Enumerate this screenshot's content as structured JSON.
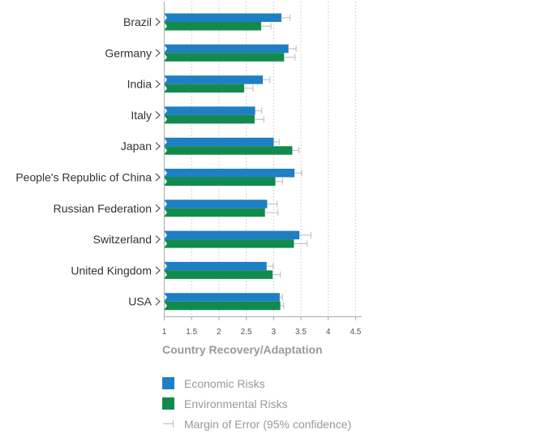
{
  "colors": {
    "economic": "#1f7fc4",
    "environmental": "#128a4d",
    "error": "#c4c4c4",
    "grid": "#d4d4d4"
  },
  "chart_data": {
    "type": "bar",
    "orientation": "horizontal",
    "categories": [
      "Brazil",
      "Germany",
      "India",
      "Italy",
      "Japan",
      "People's Republic of China",
      "Russian Federation",
      "Switzerland",
      "United Kingdom",
      "USA"
    ],
    "series": [
      {
        "name": "Economic Risks",
        "values": [
          3.15,
          3.28,
          2.81,
          2.67,
          3.01,
          3.39,
          2.89,
          3.48,
          2.88,
          3.12
        ],
        "error_upper": [
          3.31,
          3.42,
          2.94,
          2.79,
          3.11,
          3.52,
          3.07,
          3.69,
          3.0,
          3.17
        ]
      },
      {
        "name": "Environmental Risks",
        "values": [
          2.78,
          3.2,
          2.47,
          2.66,
          3.35,
          3.04,
          2.85,
          3.38,
          2.99,
          3.13
        ],
        "error_upper": [
          2.96,
          3.4,
          2.63,
          2.83,
          3.47,
          3.17,
          3.09,
          3.62,
          3.13,
          3.19
        ]
      }
    ],
    "xlim": [
      1,
      4.5
    ],
    "xticks": [
      "1",
      "1.5",
      "2",
      "2.5",
      "3",
      "3.5",
      "4",
      "4.5"
    ],
    "xlabel": "Country Recovery/Adaptation",
    "grid": "vertical dashed",
    "legend_placement": "bottom-left"
  },
  "legend": {
    "economic_label": "Economic Risks",
    "environmental_label": "Environmental Risks",
    "error_label": "Margin of Error (95% confidence)"
  }
}
